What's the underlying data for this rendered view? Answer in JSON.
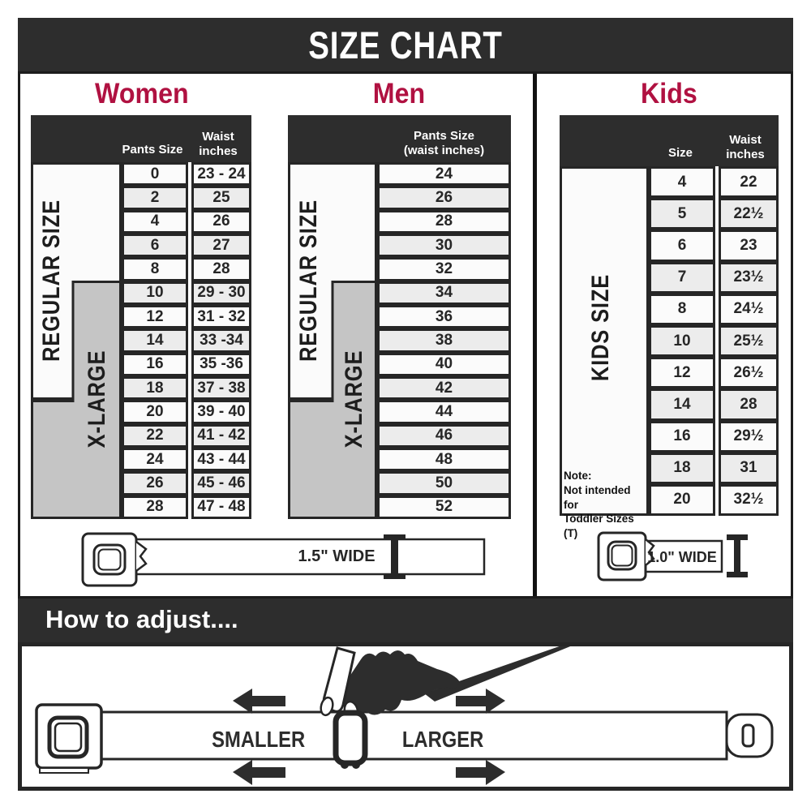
{
  "page_title": "SIZE CHART",
  "colors": {
    "header_dark": "#2d2d2d",
    "accent_crimson": "#b01141",
    "xlarge_gray": "#c5c5c5",
    "row_light": "#fbfbfb",
    "row_alt": "#ececec"
  },
  "sections": {
    "women": {
      "title": "Women",
      "col_pants": "Pants Size",
      "col_waist": "Waist\ninches",
      "regular_label": "REGULAR SIZE",
      "xlarge_label": "X-LARGE",
      "rows": [
        [
          "0",
          "23 - 24"
        ],
        [
          "2",
          "25"
        ],
        [
          "4",
          "26"
        ],
        [
          "6",
          "27"
        ],
        [
          "8",
          "28"
        ],
        [
          "10",
          "29 - 30"
        ],
        [
          "12",
          "31 - 32"
        ],
        [
          "14",
          "33 -34"
        ],
        [
          "16",
          "35 -36"
        ],
        [
          "18",
          "37 - 38"
        ],
        [
          "20",
          "39 - 40"
        ],
        [
          "22",
          "41 - 42"
        ],
        [
          "24",
          "43 - 44"
        ],
        [
          "26",
          "45 - 46"
        ],
        [
          "28",
          "47 - 48"
        ]
      ]
    },
    "men": {
      "title": "Men",
      "col_pants": "Pants Size\n(waist inches)",
      "regular_label": "REGULAR SIZE",
      "xlarge_label": "X-LARGE",
      "rows": [
        "24",
        "26",
        "28",
        "30",
        "32",
        "34",
        "36",
        "38",
        "40",
        "42",
        "44",
        "46",
        "48",
        "50",
        "52"
      ]
    },
    "kids": {
      "title": "Kids",
      "col_size": "Size",
      "col_waist": "Waist\ninches",
      "side_label": "KIDS SIZE",
      "note": "Note:\nNot intended for\nToddler Sizes (T)",
      "rows": [
        [
          "4",
          "22"
        ],
        [
          "5",
          "22½"
        ],
        [
          "6",
          "23"
        ],
        [
          "7",
          "23½"
        ],
        [
          "8",
          "24½"
        ],
        [
          "10",
          "25½"
        ],
        [
          "12",
          "26½"
        ],
        [
          "14",
          "28"
        ],
        [
          "16",
          "29½"
        ],
        [
          "18",
          "31"
        ],
        [
          "20",
          "32½"
        ]
      ]
    }
  },
  "belts": {
    "adult_width_label": "1.5\" WIDE",
    "kids_width_label": "1.0\" WIDE"
  },
  "adjust": {
    "heading": "How to adjust....",
    "smaller_label": "SMALLER",
    "larger_label": "LARGER"
  }
}
